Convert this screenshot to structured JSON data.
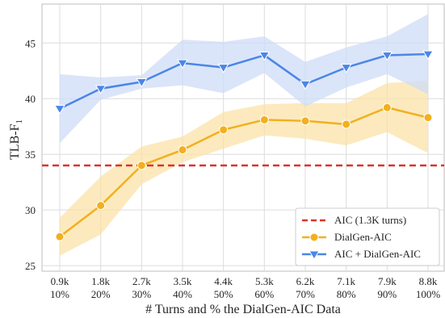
{
  "chart_data": {
    "type": "line",
    "xlabel": "# Turns and % the DialGen-AIC Data",
    "ylabel": "TLB-F",
    "ylabel_subscript": "1",
    "categories": [
      {
        "turns": "0.9k",
        "pct": "10%"
      },
      {
        "turns": "1.8k",
        "pct": "20%"
      },
      {
        "turns": "2.7k",
        "pct": "30%"
      },
      {
        "turns": "3.5k",
        "pct": "40%"
      },
      {
        "turns": "4.4k",
        "pct": "50%"
      },
      {
        "turns": "5.3k",
        "pct": "60%"
      },
      {
        "turns": "6.2k",
        "pct": "70%"
      },
      {
        "turns": "7.1k",
        "pct": "80%"
      },
      {
        "turns": "7.9k",
        "pct": "90%"
      },
      {
        "turns": "8.8k",
        "pct": "100%"
      }
    ],
    "ylim": [
      24.5,
      48.5
    ],
    "yticks": [
      25,
      30,
      35,
      40,
      45
    ],
    "grid": true,
    "legend_position": "bottom-right",
    "baseline": {
      "name": "AIC (1.3K turns)",
      "value": 34.0,
      "color": "#d9342b",
      "style": "dashed"
    },
    "series": [
      {
        "name": "DialGen-AIC",
        "color": "#f2b01e",
        "band_color": "#fbe3a8",
        "marker": "circle",
        "values": [
          27.6,
          30.4,
          34.0,
          35.4,
          37.2,
          38.1,
          38.0,
          37.7,
          39.2,
          38.3
        ],
        "lower": [
          25.9,
          27.8,
          32.3,
          34.3,
          35.5,
          36.7,
          36.4,
          35.8,
          37.0,
          35.1
        ],
        "upper": [
          29.3,
          33.0,
          35.7,
          36.6,
          38.8,
          39.5,
          39.6,
          39.6,
          41.4,
          41.6
        ]
      },
      {
        "name": "AIC + DialGen-AIC",
        "color": "#4a86e8",
        "band_color": "#cfdcf7",
        "marker": "triangle-down",
        "values": [
          39.1,
          40.9,
          41.5,
          43.2,
          42.8,
          43.9,
          41.3,
          42.8,
          43.9,
          44.0
        ],
        "lower": [
          36.0,
          39.9,
          40.9,
          41.2,
          40.5,
          42.3,
          39.3,
          41.0,
          42.2,
          40.4
        ],
        "upper": [
          42.2,
          41.9,
          42.1,
          45.3,
          45.1,
          45.6,
          43.3,
          44.6,
          45.6,
          47.6
        ]
      }
    ]
  }
}
